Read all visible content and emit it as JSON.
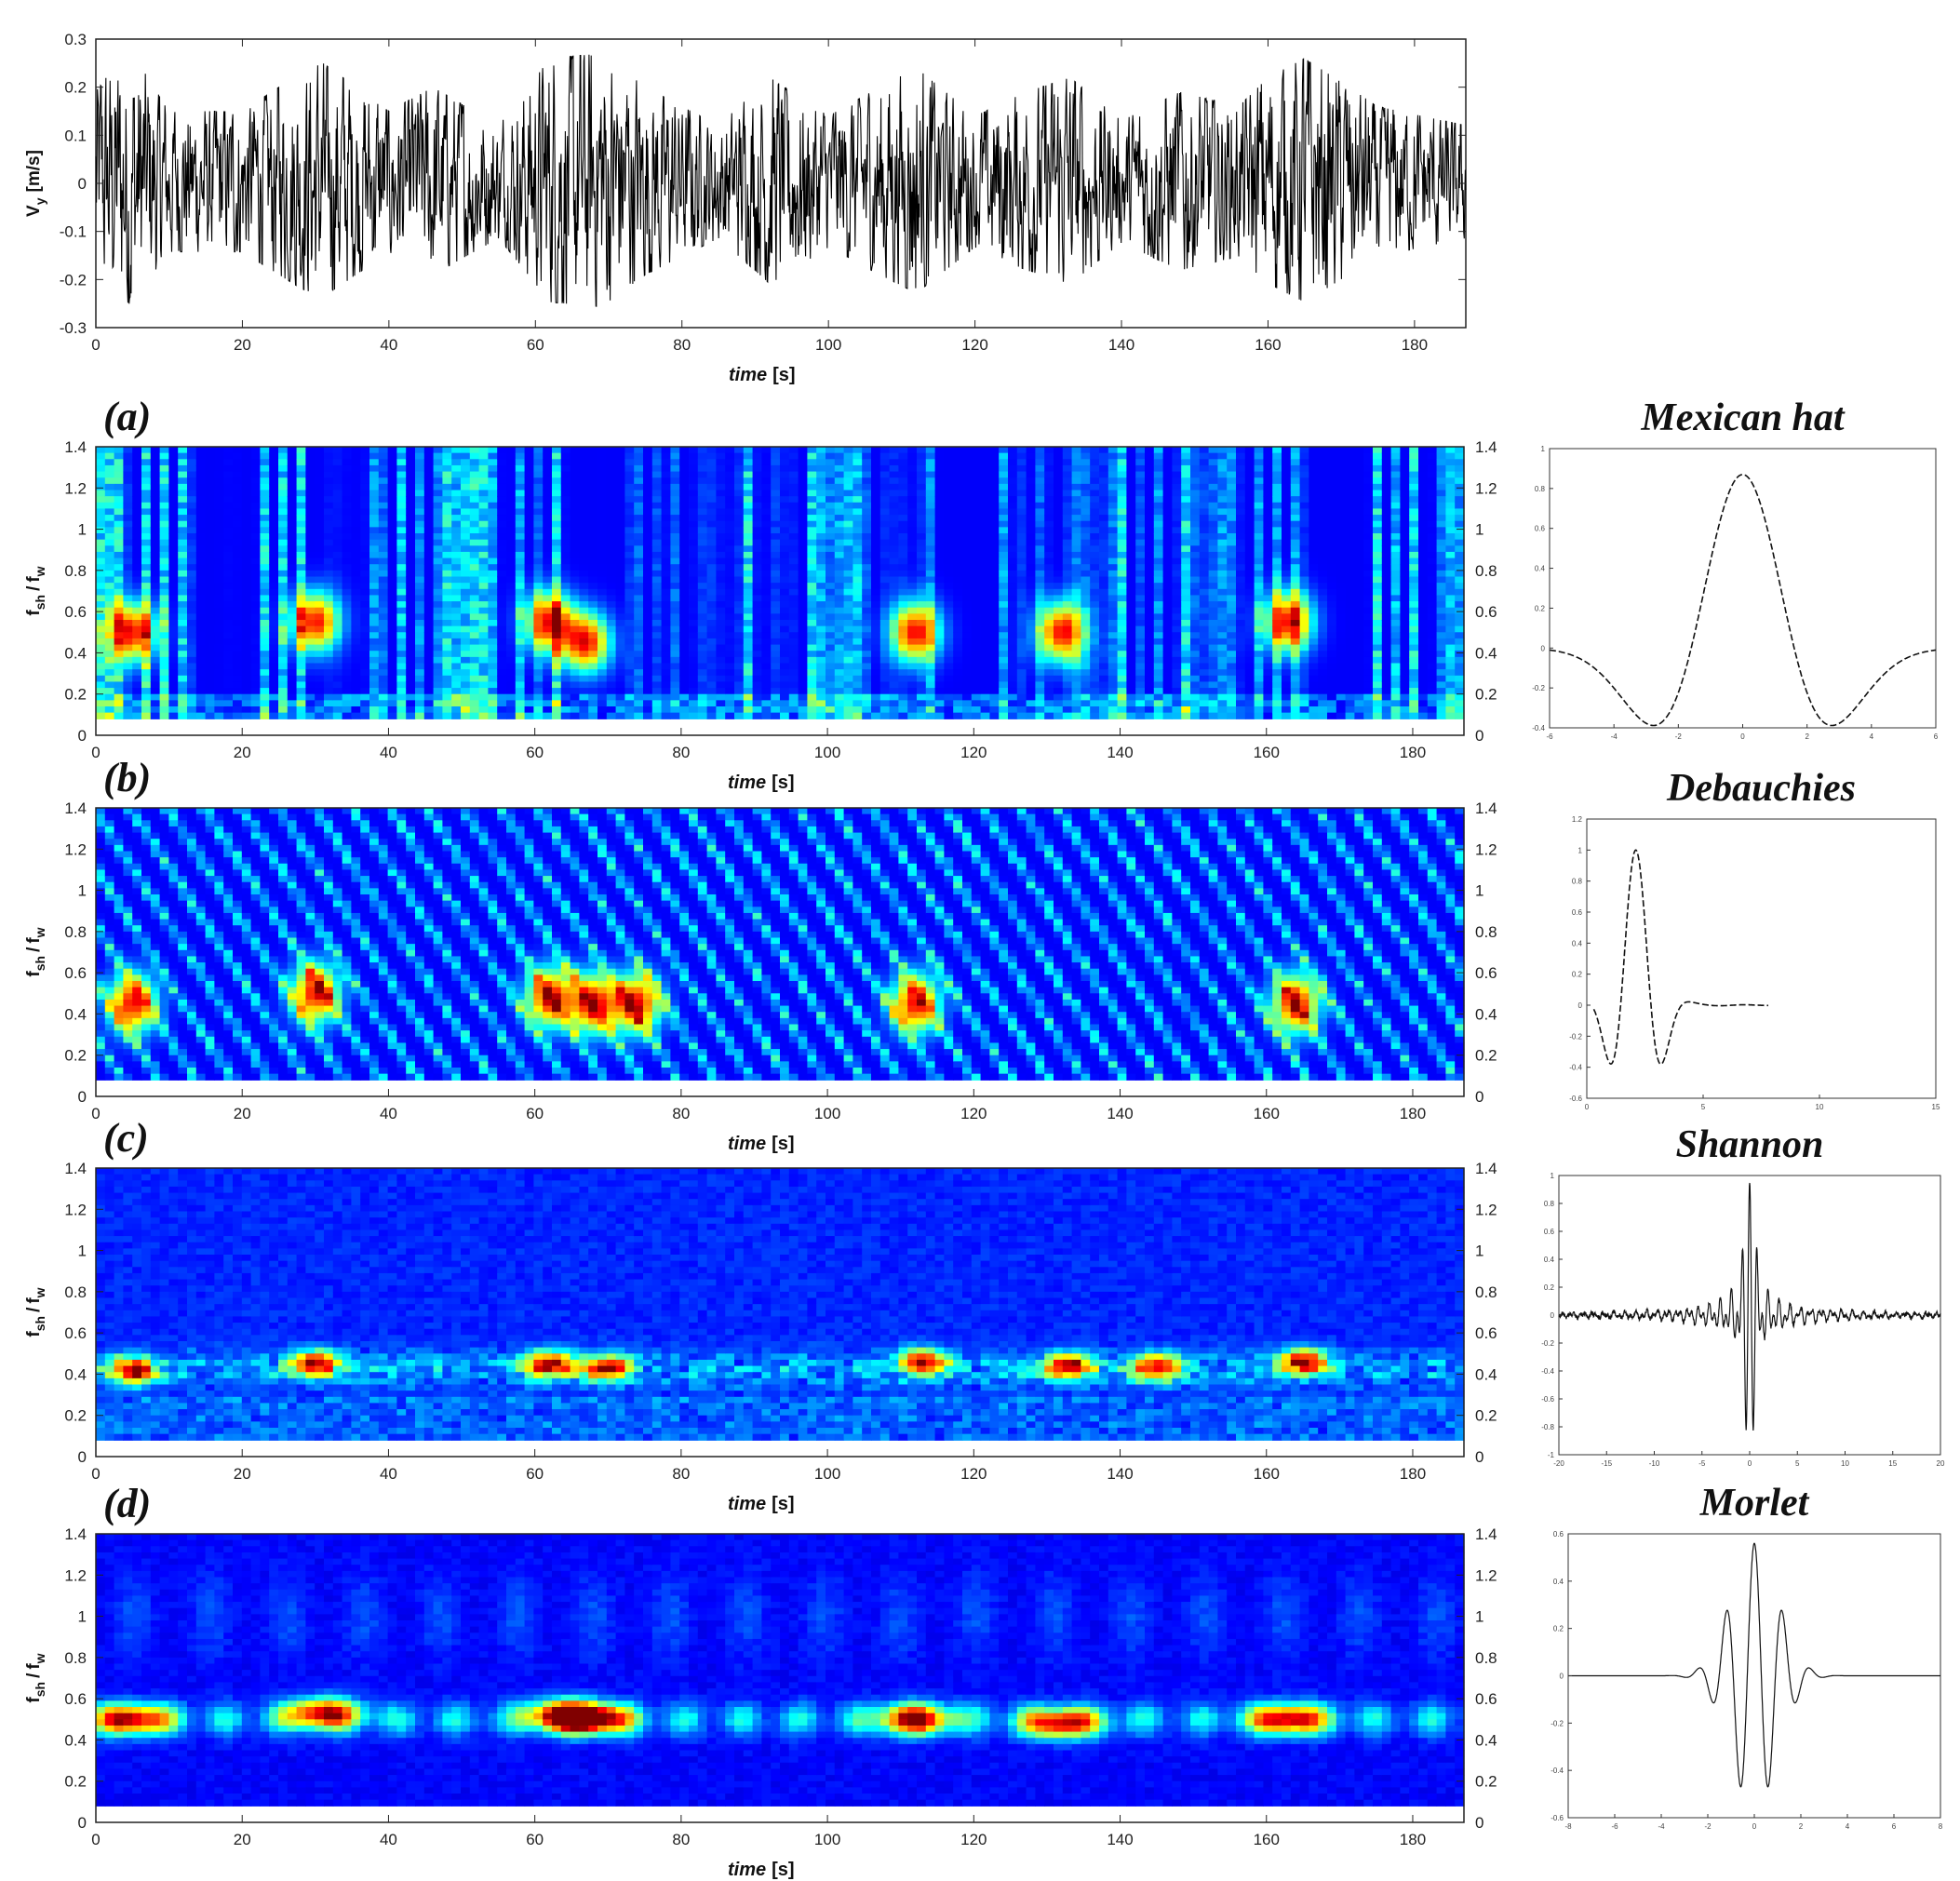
{
  "chart_data": [
    {
      "type": "line",
      "panel": "signal",
      "xlabel_main": "time",
      "xlabel_unit": "[s]",
      "ylabel_main": "V",
      "ylabel_sub": "y",
      "ylabel_unit": "[m/s]",
      "xlim": [
        0,
        187
      ],
      "ylim": [
        -0.3,
        0.3
      ],
      "xticks": [
        "0",
        "20",
        "40",
        "60",
        "80",
        "100",
        "120",
        "140",
        "160",
        "180"
      ],
      "yticks": [
        "-0.3",
        "-0.2",
        "-0.1",
        "0",
        "0.1",
        "0.2",
        "0.3"
      ],
      "envelope_x": [
        0,
        5,
        10,
        20,
        28,
        31,
        40,
        46,
        55,
        62,
        69,
        75,
        85,
        92,
        100,
        107,
        112,
        120,
        127,
        133,
        140,
        148,
        156,
        160,
        165,
        175,
        187
      ],
      "envelope_y": [
        0.2,
        0.27,
        0.15,
        0.15,
        0.23,
        0.25,
        0.15,
        0.2,
        0.12,
        0.26,
        0.27,
        0.2,
        0.12,
        0.22,
        0.14,
        0.2,
        0.24,
        0.14,
        0.19,
        0.22,
        0.13,
        0.19,
        0.16,
        0.22,
        0.26,
        0.16,
        0.12
      ],
      "grid": false
    },
    {
      "type": "heatmap",
      "panel": "a",
      "panel_label": "(a)",
      "wavelet": "Mexican hat",
      "xlabel_main": "time",
      "xlabel_unit": "[s]",
      "ylabel_main": "f",
      "ylabel_sub1": "sh",
      "ylabel_sub2": "w",
      "xlim": [
        0,
        187
      ],
      "ylim": [
        0,
        1.4
      ],
      "xticks": [
        "0",
        "20",
        "40",
        "60",
        "80",
        "100",
        "120",
        "140",
        "160",
        "180"
      ],
      "yticks": [
        "0",
        "0.2",
        "0.4",
        "0.6",
        "0.8",
        "1",
        "1.2",
        "1.4"
      ],
      "colormap": "jet",
      "hotspots": [
        [
          5,
          0.5
        ],
        [
          30,
          0.55
        ],
        [
          62,
          0.55
        ],
        [
          67,
          0.45
        ],
        [
          112,
          0.5
        ],
        [
          132,
          0.5
        ],
        [
          163,
          0.55
        ]
      ]
    },
    {
      "type": "heatmap",
      "panel": "b",
      "panel_label": "(b)",
      "wavelet": "Debauchies",
      "xlabel_main": "time",
      "xlabel_unit": "[s]",
      "ylabel_main": "f",
      "ylabel_sub1": "sh",
      "ylabel_sub2": "w",
      "xlim": [
        0,
        187
      ],
      "ylim": [
        0,
        1.4
      ],
      "xticks": [
        "0",
        "20",
        "40",
        "60",
        "80",
        "100",
        "120",
        "140",
        "160",
        "180"
      ],
      "yticks": [
        "0",
        "0.2",
        "0.4",
        "0.6",
        "0.8",
        "1",
        "1.2",
        "1.4"
      ],
      "colormap": "jet",
      "hotspots": [
        [
          5,
          0.45
        ],
        [
          30,
          0.5
        ],
        [
          62,
          0.48
        ],
        [
          68,
          0.45
        ],
        [
          74,
          0.45
        ],
        [
          112,
          0.45
        ],
        [
          164,
          0.45
        ]
      ]
    },
    {
      "type": "heatmap",
      "panel": "c",
      "panel_label": "(c)",
      "wavelet": "Shannon",
      "xlabel_main": "time",
      "xlabel_unit": "[s]",
      "ylabel_main": "f",
      "ylabel_sub1": "sh",
      "ylabel_sub2": "w",
      "xlim": [
        0,
        187
      ],
      "ylim": [
        0,
        1.4
      ],
      "xticks": [
        "0",
        "20",
        "40",
        "60",
        "80",
        "100",
        "120",
        "140",
        "160",
        "180"
      ],
      "yticks": [
        "0",
        "0.2",
        "0.4",
        "0.6",
        "0.8",
        "1",
        "1.2",
        "1.4"
      ],
      "colormap": "jet",
      "hotspots": [
        [
          5,
          0.42
        ],
        [
          30,
          0.45
        ],
        [
          62,
          0.45
        ],
        [
          70,
          0.43
        ],
        [
          113,
          0.46
        ],
        [
          133,
          0.44
        ],
        [
          145,
          0.43
        ],
        [
          165,
          0.46
        ]
      ]
    },
    {
      "type": "heatmap",
      "panel": "d",
      "panel_label": "(d)",
      "wavelet": "Morlet",
      "xlabel_main": "time",
      "xlabel_unit": "[s]",
      "ylabel_main": "f",
      "ylabel_sub1": "sh",
      "ylabel_sub2": "w",
      "xlim": [
        0,
        187
      ],
      "ylim": [
        0,
        1.4
      ],
      "xticks": [
        "0",
        "20",
        "40",
        "60",
        "80",
        "100",
        "120",
        "140",
        "160",
        "180"
      ],
      "yticks": [
        "0",
        "0.2",
        "0.4",
        "0.6",
        "0.8",
        "1",
        "1.2",
        "1.4"
      ],
      "colormap": "jet",
      "hotspots": [
        [
          5,
          0.5
        ],
        [
          31,
          0.53
        ],
        [
          64,
          0.52
        ],
        [
          68,
          0.5
        ],
        [
          112,
          0.5
        ],
        [
          132,
          0.48
        ],
        [
          163,
          0.5
        ]
      ]
    },
    {
      "type": "line",
      "panel": "wavelet-mexican-hat",
      "title": "Mexican hat",
      "xlim": [
        -6,
        6
      ],
      "ylim": [
        -0.4,
        1
      ],
      "xticks": [
        "-6",
        "-4",
        "-2",
        "0",
        "2",
        "4",
        "6"
      ],
      "yticks": [
        "-0.4",
        "-0.2",
        "0",
        "0.2",
        "0.4",
        "0.6",
        "0.8",
        "1"
      ]
    },
    {
      "type": "line",
      "panel": "wavelet-debauchies",
      "title": "Debauchies",
      "xlim": [
        0,
        15
      ],
      "ylim": [
        -0.6,
        1.2
      ],
      "xticks": [
        "0",
        "5",
        "10",
        "15"
      ],
      "yticks": [
        "-0.6",
        "-0.4",
        "-0.2",
        "0",
        "0.2",
        "0.4",
        "0.6",
        "0.8",
        "1",
        "1.2"
      ]
    },
    {
      "type": "line",
      "panel": "wavelet-shannon",
      "title": "Shannon",
      "xlim": [
        -20,
        20
      ],
      "ylim": [
        -1,
        1
      ],
      "xticks": [
        "-20",
        "-15",
        "-10",
        "-5",
        "0",
        "5",
        "10",
        "15",
        "20"
      ],
      "yticks": [
        "-1",
        "-0.8",
        "-0.6",
        "-0.4",
        "-0.2",
        "0",
        "0.2",
        "0.4",
        "0.6",
        "0.8",
        "1"
      ]
    },
    {
      "type": "line",
      "panel": "wavelet-morlet",
      "title": "Morlet",
      "xlim": [
        -8,
        8
      ],
      "ylim": [
        -0.6,
        0.6
      ],
      "xticks": [
        "-8",
        "-6",
        "-4",
        "-2",
        "0",
        "2",
        "4",
        "6",
        "8"
      ],
      "yticks": [
        "-0.6",
        "-0.4",
        "-0.2",
        "0",
        "0.2",
        "0.4",
        "0.6"
      ]
    }
  ]
}
